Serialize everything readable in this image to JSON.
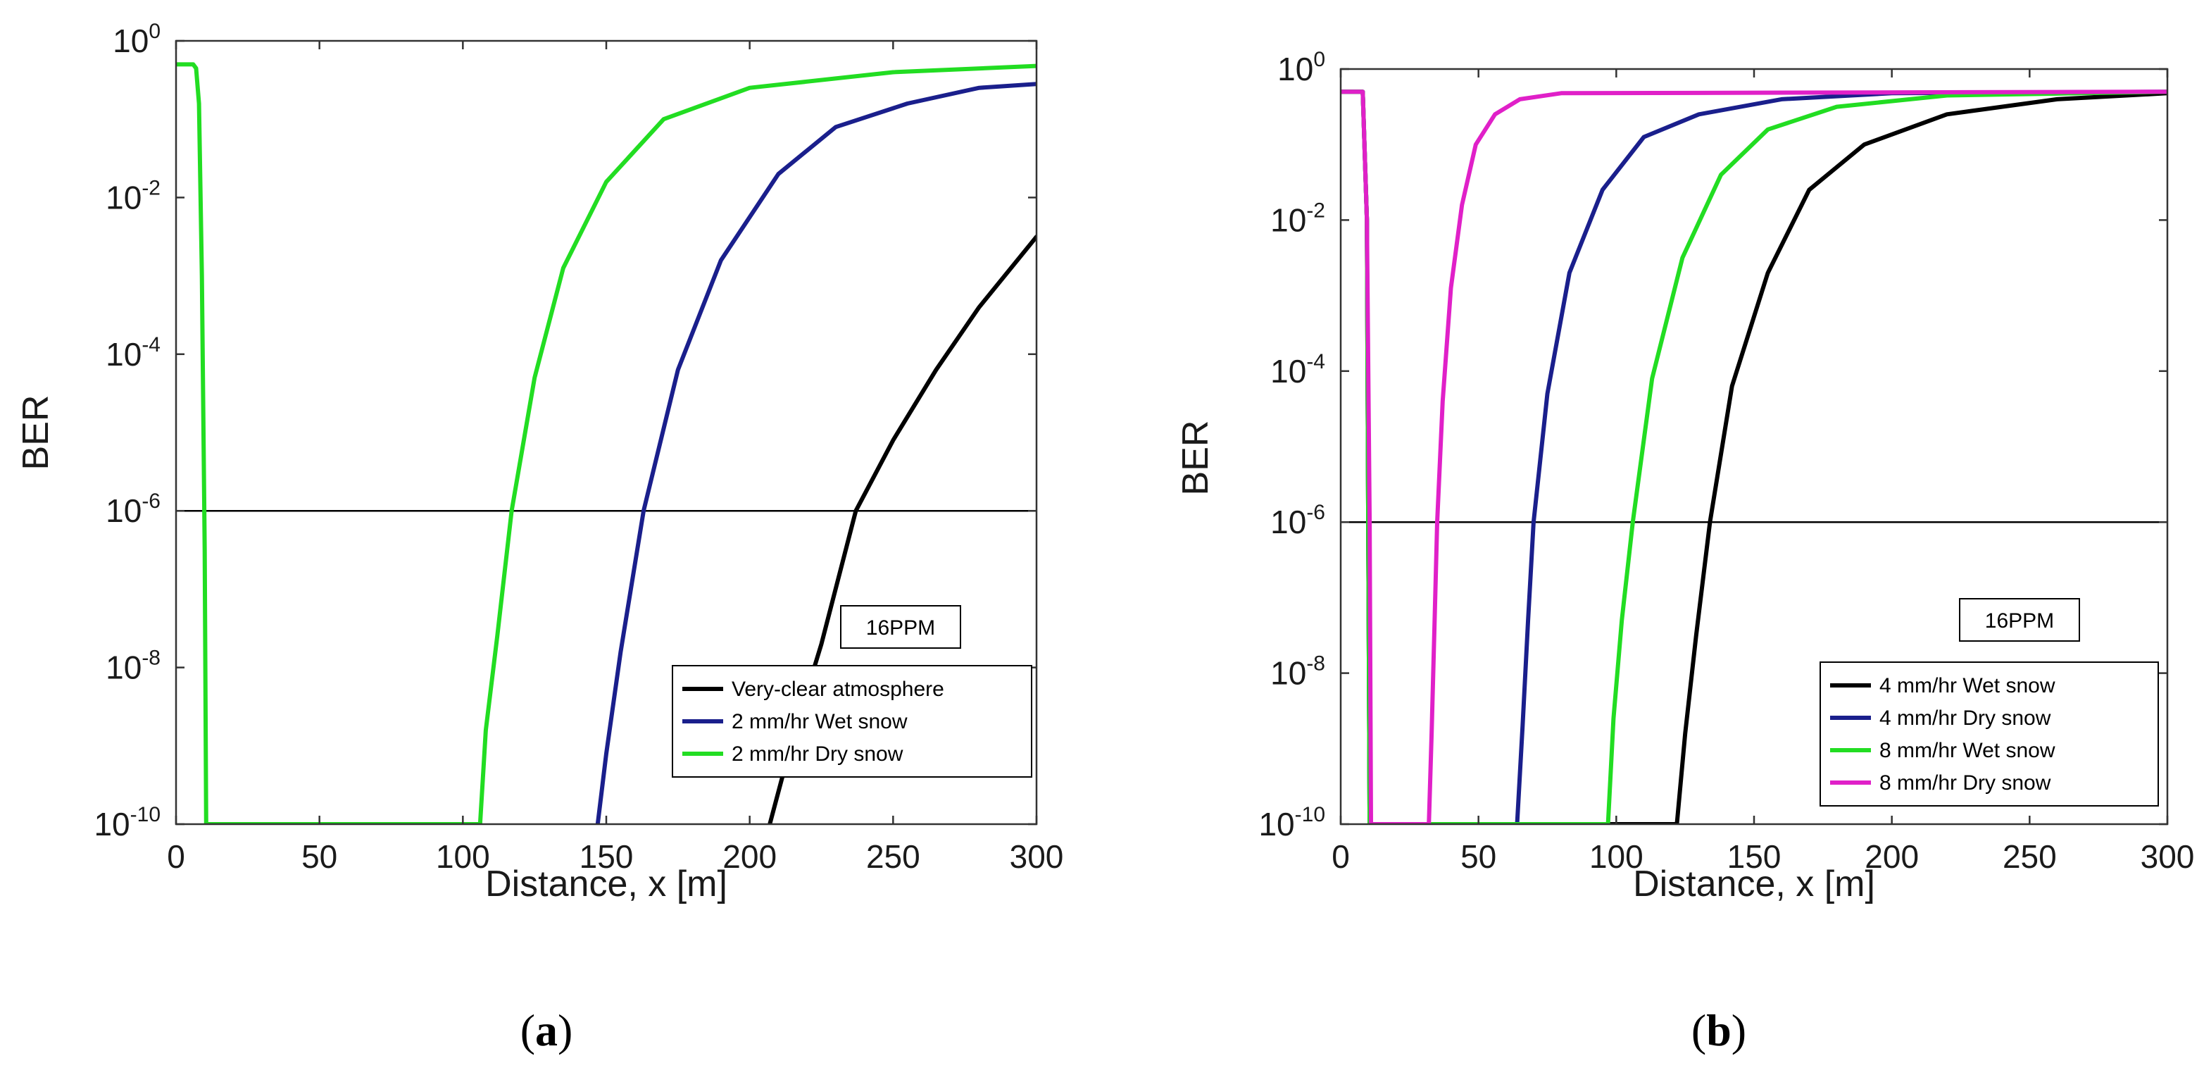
{
  "chart_data": [
    {
      "id": "a",
      "type": "line",
      "caption": {
        "open": "(",
        "letter": "a",
        "close": ")"
      },
      "xlabel": "Distance, x [m]",
      "ylabel": "BER",
      "xlim": [
        0,
        300
      ],
      "ylim_log10": [
        -10,
        0
      ],
      "xticks": [
        0,
        50,
        100,
        150,
        200,
        250,
        300
      ],
      "yticks": [
        {
          "base": "10",
          "exp": "0"
        },
        {
          "base": "10",
          "exp": "-2"
        },
        {
          "base": "10",
          "exp": "-4"
        },
        {
          "base": "10",
          "exp": "-6"
        },
        {
          "base": "10",
          "exp": "-8"
        },
        {
          "base": "10",
          "exp": "-10"
        }
      ],
      "ytick_exponents": [
        0,
        -2,
        -4,
        -6,
        -8,
        -10
      ],
      "threshold_log10": -6,
      "annotation": "16PPM",
      "series": [
        {
          "name": "Very-clear atmosphere",
          "color": "#000000",
          "x": [
            207,
            215,
            225,
            237,
            250,
            265,
            280,
            300
          ],
          "log10_y": [
            -10,
            -8.9,
            -7.7,
            -6.0,
            -5.1,
            -4.2,
            -3.4,
            -2.5
          ]
        },
        {
          "name": "2 mm/hr Wet snow",
          "color": "#1a1f8c",
          "x": [
            147,
            150,
            155,
            163,
            175,
            190,
            210,
            230,
            255,
            280,
            300
          ],
          "log10_y": [
            -10,
            -9.1,
            -7.8,
            -6.0,
            -4.2,
            -2.8,
            -1.7,
            -1.1,
            -0.8,
            -0.6,
            -0.55
          ]
        },
        {
          "name": "2 mm/hr Dry snow",
          "color": "#22dd22",
          "x": [
            0,
            2,
            4,
            6,
            7,
            8,
            9,
            10,
            10.5,
            106,
            108,
            112,
            117,
            125,
            135,
            150,
            170,
            200,
            250,
            300
          ],
          "log10_y": [
            -0.3,
            -0.3,
            -0.3,
            -0.3,
            -0.35,
            -0.8,
            -3,
            -6.5,
            -10,
            -10,
            -8.8,
            -7.6,
            -6.0,
            -4.3,
            -2.9,
            -1.8,
            -1.0,
            -0.6,
            -0.4,
            -0.32
          ]
        }
      ]
    },
    {
      "id": "b",
      "type": "line",
      "caption": {
        "open": "(",
        "letter": "b",
        "close": ")"
      },
      "xlabel": "Distance, x [m]",
      "ylabel": "BER",
      "xlim": [
        0,
        300
      ],
      "ylim_log10": [
        -10,
        0
      ],
      "xticks": [
        0,
        50,
        100,
        150,
        200,
        250,
        300
      ],
      "yticks": [
        {
          "base": "10",
          "exp": "0"
        },
        {
          "base": "10",
          "exp": "-2"
        },
        {
          "base": "10",
          "exp": "-4"
        },
        {
          "base": "10",
          "exp": "-6"
        },
        {
          "base": "10",
          "exp": "-8"
        },
        {
          "base": "10",
          "exp": "-10"
        }
      ],
      "ytick_exponents": [
        0,
        -2,
        -4,
        -6,
        -8,
        -10
      ],
      "threshold_log10": -6,
      "annotation": "16PPM",
      "series": [
        {
          "name": "4 mm/hr Wet snow",
          "color": "#000000",
          "x": [
            0,
            3,
            6,
            8,
            9.5,
            10,
            10.5,
            122,
            125,
            129,
            134,
            142,
            155,
            170,
            190,
            220,
            260,
            300
          ],
          "log10_y": [
            -0.3,
            -0.3,
            -0.3,
            -0.3,
            -2,
            -6,
            -10,
            -10,
            -8.8,
            -7.5,
            -6.0,
            -4.2,
            -2.7,
            -1.6,
            -1.0,
            -0.6,
            -0.4,
            -0.32
          ]
        },
        {
          "name": "4 mm/hr Dry snow",
          "color": "#1a1f8c",
          "x": [
            0,
            3,
            6,
            8,
            9.5,
            10,
            10.5,
            64,
            66,
            68,
            70,
            75,
            83,
            95,
            110,
            130,
            160,
            200,
            300
          ],
          "log10_y": [
            -0.3,
            -0.3,
            -0.3,
            -0.3,
            -2,
            -6,
            -10,
            -10,
            -8.7,
            -7.3,
            -6.0,
            -4.3,
            -2.7,
            -1.6,
            -0.9,
            -0.6,
            -0.4,
            -0.32,
            -0.3
          ]
        },
        {
          "name": "8 mm/hr Wet snow",
          "color": "#22dd22",
          "x": [
            0,
            3,
            6,
            8,
            9.5,
            10,
            10.5,
            97,
            99,
            102,
            106,
            113,
            124,
            138,
            155,
            180,
            220,
            300
          ],
          "log10_y": [
            -0.3,
            -0.3,
            -0.3,
            -0.3,
            -2,
            -6,
            -10,
            -10,
            -8.6,
            -7.3,
            -6.0,
            -4.1,
            -2.5,
            -1.4,
            -0.8,
            -0.5,
            -0.35,
            -0.3
          ]
        },
        {
          "name": "8 mm/hr Dry snow",
          "color": "#e020c8",
          "x": [
            0,
            3,
            6,
            8,
            9.5,
            10.5,
            11,
            32,
            33,
            34,
            35,
            37,
            40,
            44,
            49,
            56,
            65,
            80,
            300
          ],
          "log10_y": [
            -0.3,
            -0.3,
            -0.3,
            -0.3,
            -2,
            -6,
            -10,
            -10,
            -8.8,
            -7.4,
            -6.0,
            -4.4,
            -2.9,
            -1.8,
            -1.0,
            -0.6,
            -0.4,
            -0.32,
            -0.3
          ]
        }
      ]
    }
  ]
}
